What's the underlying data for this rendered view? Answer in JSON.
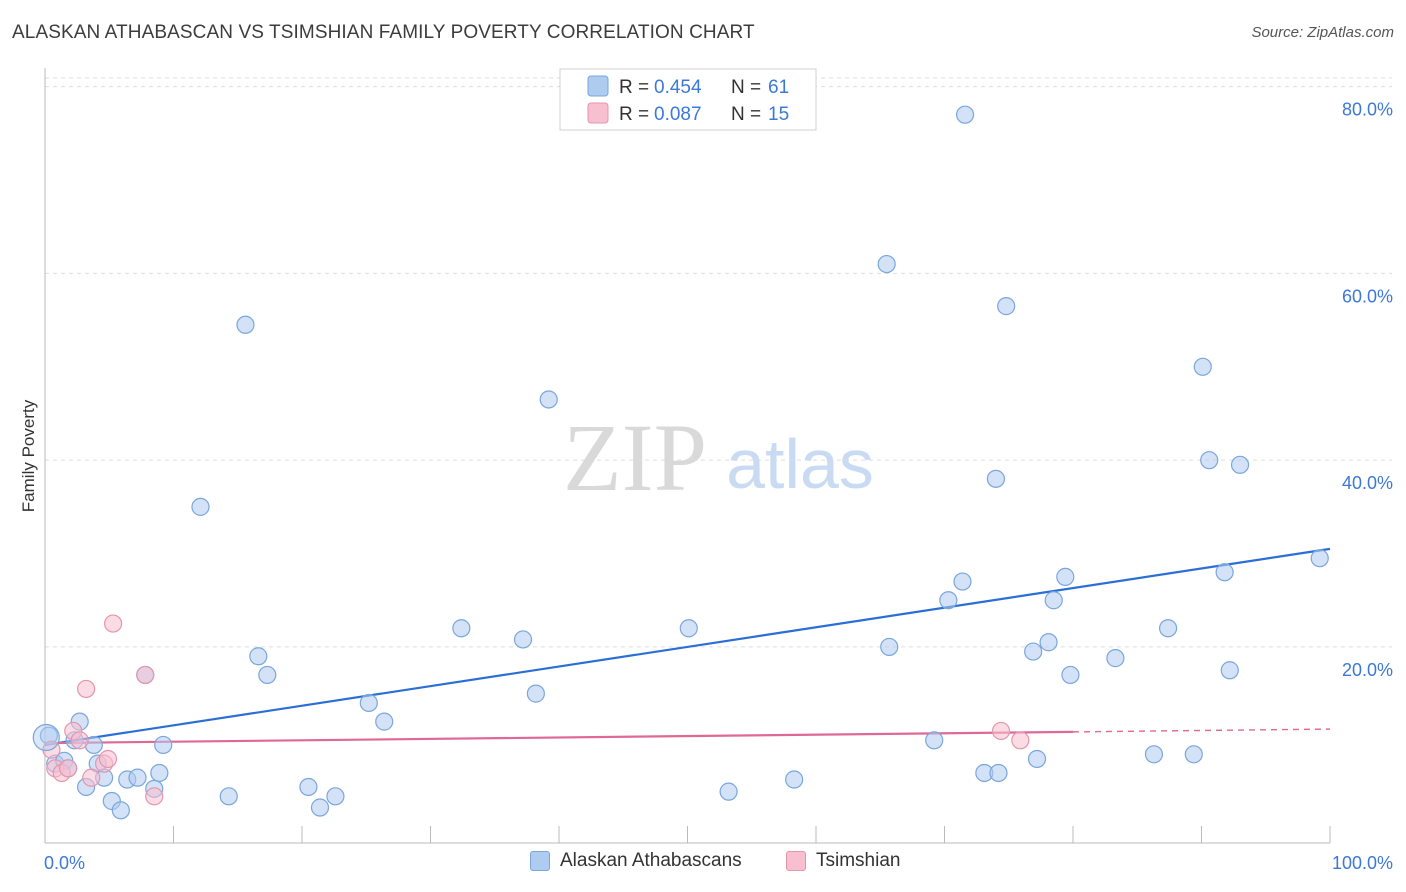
{
  "header": {
    "title": "ALASKAN ATHABASCAN VS TSIMSHIAN FAMILY POVERTY CORRELATION CHART",
    "source": "Source: ZipAtlas.com"
  },
  "watermark": {
    "zip": "ZIP",
    "atlas": "atlas"
  },
  "colors": {
    "blue_fill": "#aecbf0",
    "blue_stroke": "#7aa6dc",
    "blue_line": "#2b6fd6",
    "blue_text": "#3c78d8",
    "pink_fill": "#f7bfd0",
    "pink_stroke": "#e595ae",
    "pink_line": "#e06894",
    "grid": "#dddddd",
    "axis": "#bbbbbb"
  },
  "legend_top": {
    "rows": [
      {
        "r_label": "R = ",
        "r_value": "0.454",
        "n_label": "N = ",
        "n_value": "61",
        "series": "blue"
      },
      {
        "r_label": "R = ",
        "r_value": "0.087",
        "n_label": "N = ",
        "n_value": "15",
        "series": "pink"
      }
    ]
  },
  "legend_bottom": {
    "items": [
      {
        "label": "Alaskan Athabascans",
        "series": "blue"
      },
      {
        "label": "Tsimshian",
        "series": "pink"
      }
    ]
  },
  "chart_data": {
    "type": "scatter",
    "title": "ALASKAN ATHABASCAN VS TSIMSHIAN FAMILY POVERTY CORRELATION CHART",
    "ylabel": "Family Poverty",
    "xlabel": "",
    "xlim": [
      0,
      100
    ],
    "ylim": [
      -1,
      82
    ],
    "y_ticks": [
      20,
      40,
      60,
      80
    ],
    "y_tick_labels": [
      "20.0%",
      "40.0%",
      "60.0%",
      "80.0%"
    ],
    "x_tick_labels": [
      "0.0%",
      "100.0%"
    ],
    "x_minor_ticks": [
      10,
      20,
      30,
      40,
      50,
      60,
      70,
      80,
      90,
      100
    ],
    "series": [
      {
        "name": "Alaskan Athabascans",
        "color": "blue",
        "points": [
          [
            0.3,
            10.5
          ],
          [
            0.8,
            7.5
          ],
          [
            1.5,
            7.8
          ],
          [
            1.8,
            7.0
          ],
          [
            2.3,
            10.0
          ],
          [
            2.7,
            12.0
          ],
          [
            3.2,
            5.0
          ],
          [
            3.8,
            9.5
          ],
          [
            4.1,
            7.5
          ],
          [
            4.6,
            6.0
          ],
          [
            5.2,
            3.5
          ],
          [
            5.9,
            2.5
          ],
          [
            6.4,
            5.8
          ],
          [
            7.2,
            6.0
          ],
          [
            7.8,
            17.0
          ],
          [
            8.5,
            4.8
          ],
          [
            8.9,
            6.5
          ],
          [
            9.2,
            9.5
          ],
          [
            12.1,
            35.0
          ],
          [
            14.3,
            4.0
          ],
          [
            15.6,
            54.5
          ],
          [
            16.6,
            19.0
          ],
          [
            17.3,
            17.0
          ],
          [
            20.5,
            5.0
          ],
          [
            21.4,
            2.8
          ],
          [
            22.6,
            4.0
          ],
          [
            25.2,
            14.0
          ],
          [
            26.4,
            12.0
          ],
          [
            32.4,
            22.0
          ],
          [
            37.2,
            20.8
          ],
          [
            38.2,
            15.0
          ],
          [
            39.2,
            46.5
          ],
          [
            50.1,
            22.0
          ],
          [
            53.2,
            4.5
          ],
          [
            58.3,
            5.8
          ],
          [
            65.5,
            61.0
          ],
          [
            65.7,
            20.0
          ],
          [
            69.2,
            10.0
          ],
          [
            70.3,
            25.0
          ],
          [
            71.4,
            27.0
          ],
          [
            71.6,
            77.0
          ],
          [
            73.1,
            6.5
          ],
          [
            74.0,
            38.0
          ],
          [
            74.2,
            6.5
          ],
          [
            74.8,
            56.5
          ],
          [
            76.9,
            19.5
          ],
          [
            77.2,
            8.0
          ],
          [
            78.1,
            20.5
          ],
          [
            78.5,
            25.0
          ],
          [
            79.4,
            27.5
          ],
          [
            79.8,
            17.0
          ],
          [
            83.3,
            18.8
          ],
          [
            86.3,
            8.5
          ],
          [
            87.4,
            22.0
          ],
          [
            89.4,
            8.5
          ],
          [
            90.1,
            50.0
          ],
          [
            90.6,
            40.0
          ],
          [
            91.8,
            28.0
          ],
          [
            92.2,
            17.5
          ],
          [
            93.0,
            39.5
          ],
          [
            99.2,
            29.5
          ]
        ],
        "trend": {
          "x": [
            0,
            100
          ],
          "y": [
            9.5,
            30.5
          ]
        }
      },
      {
        "name": "Tsimshian",
        "color": "pink",
        "points": [
          [
            0.5,
            9.0
          ],
          [
            0.8,
            7.0
          ],
          [
            1.3,
            6.5
          ],
          [
            1.8,
            7.0
          ],
          [
            2.2,
            11.0
          ],
          [
            2.7,
            10.0
          ],
          [
            3.2,
            15.5
          ],
          [
            3.6,
            6.0
          ],
          [
            4.6,
            7.5
          ],
          [
            4.9,
            8.0
          ],
          [
            5.3,
            22.5
          ],
          [
            7.8,
            17.0
          ],
          [
            8.5,
            4.0
          ],
          [
            74.4,
            11.0
          ],
          [
            75.9,
            10.0
          ]
        ],
        "trend": {
          "x": [
            0,
            80,
            100
          ],
          "y": [
            9.7,
            10.9,
            11.2
          ],
          "dashed_from": 80
        }
      }
    ]
  }
}
